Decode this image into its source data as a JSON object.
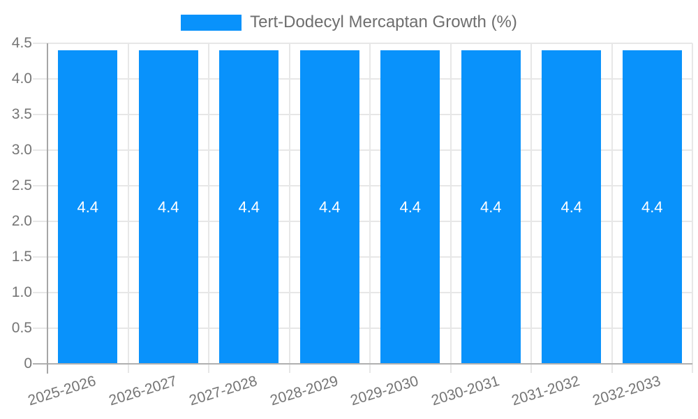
{
  "legend": {
    "label": "Tert-Dodecyl Mercaptan Growth (%)"
  },
  "chart_data": {
    "type": "bar",
    "title": "",
    "xlabel": "",
    "ylabel": "",
    "categories": [
      "2025-2026",
      "2026-2027",
      "2027-2028",
      "2028-2029",
      "2029-2030",
      "2030-2031",
      "2031-2032",
      "2032-2033"
    ],
    "series": [
      {
        "name": "Tert-Dodecyl Mercaptan Growth (%)",
        "values": [
          4.4,
          4.4,
          4.4,
          4.4,
          4.4,
          4.4,
          4.4,
          4.4
        ]
      }
    ],
    "value_labels": [
      "4.4",
      "4.4",
      "4.4",
      "4.4",
      "4.4",
      "4.4",
      "4.4",
      "4.4"
    ],
    "ylim": [
      0,
      4.5
    ],
    "ytick_step": 0.5,
    "ytick_labels": [
      "0",
      "0.5",
      "1.0",
      "1.5",
      "2.0",
      "2.5",
      "3.0",
      "3.5",
      "4.0",
      "4.5"
    ],
    "grid": true,
    "legend_position": "top",
    "x_label_rotation_deg": -17,
    "colors": {
      "bar": "#0992fb",
      "grid": "#e7e7e7",
      "axis": "#b0b0b0",
      "axis_y": "#a6a6a6",
      "tick_text": "#757575",
      "legend_text": "#6e6e6e",
      "value_label": "#ffffff",
      "background": "#ffffff"
    }
  }
}
